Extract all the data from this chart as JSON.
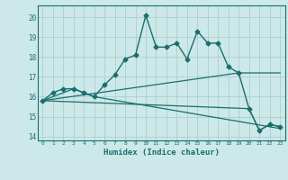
{
  "xlabel": "Humidex (Indice chaleur)",
  "xlim": [
    -0.5,
    23.5
  ],
  "ylim": [
    13.8,
    20.6
  ],
  "yticks": [
    14,
    15,
    16,
    17,
    18,
    19,
    20
  ],
  "xticks": [
    0,
    1,
    2,
    3,
    4,
    5,
    6,
    7,
    8,
    9,
    10,
    11,
    12,
    13,
    14,
    15,
    16,
    17,
    18,
    19,
    20,
    21,
    22,
    23
  ],
  "background_color": "#cce8e8",
  "grid_color": "#aecece",
  "line_color": "#1a6e6e",
  "lines": [
    {
      "x": [
        0,
        1,
        2,
        3,
        4,
        5,
        6,
        7,
        8,
        9,
        10,
        11,
        12,
        13,
        14,
        15,
        16,
        17,
        18,
        19,
        20,
        21,
        22,
        23
      ],
      "y": [
        15.8,
        16.2,
        16.4,
        16.4,
        16.2,
        16.0,
        16.6,
        17.1,
        17.9,
        18.1,
        20.1,
        18.5,
        18.5,
        18.7,
        17.9,
        19.3,
        18.7,
        18.7,
        17.5,
        17.2,
        15.4,
        14.3,
        14.6,
        14.5
      ],
      "marker": "D",
      "markersize": 2.5,
      "linewidth": 1.0,
      "zorder": 3
    },
    {
      "x": [
        0,
        3,
        4,
        5,
        23
      ],
      "y": [
        15.8,
        16.4,
        16.2,
        16.0,
        14.4
      ],
      "marker": null,
      "markersize": 0,
      "linewidth": 0.9,
      "zorder": 2
    },
    {
      "x": [
        0,
        19,
        23
      ],
      "y": [
        15.8,
        17.2,
        17.2
      ],
      "marker": null,
      "markersize": 0,
      "linewidth": 0.9,
      "zorder": 2
    },
    {
      "x": [
        0,
        20,
        21,
        22,
        23
      ],
      "y": [
        15.8,
        15.4,
        14.3,
        14.6,
        14.5
      ],
      "marker": null,
      "markersize": 0,
      "linewidth": 0.9,
      "zorder": 2
    }
  ]
}
